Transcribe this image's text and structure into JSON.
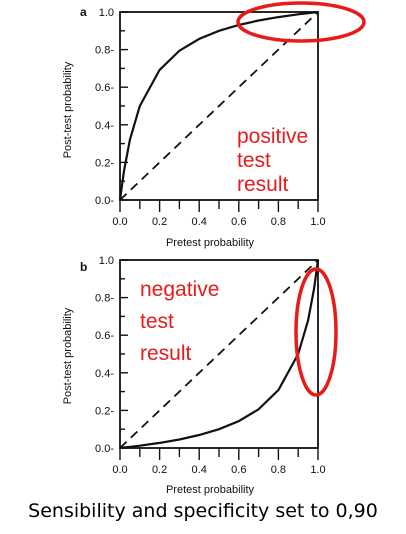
{
  "caption": "Sensibility and specificity set to 0,90",
  "colors": {
    "highlight": "#e81b1b",
    "ink": "#111111"
  },
  "chart_data": [
    {
      "type": "line",
      "panel_label": "a",
      "xlabel": "Pretest probability",
      "ylabel": "Post-test probability",
      "xlim": [
        0,
        1
      ],
      "ylim": [
        0,
        1
      ],
      "xticks": [
        "0.0",
        "0.2",
        "0.4",
        "0.6",
        "0.8",
        "1.0"
      ],
      "yticks": [
        "0.0-",
        "0.2-",
        "0.4-",
        "0.6-",
        "0.8-",
        "1.0"
      ],
      "annotation": [
        "positive",
        "test",
        "result"
      ],
      "series": [
        {
          "style": "solid",
          "x": [
            0,
            0.02,
            0.05,
            0.1,
            0.2,
            0.3,
            0.4,
            0.5,
            0.6,
            0.7,
            0.8,
            0.9,
            1.0
          ],
          "y": [
            0,
            0.155,
            0.321,
            0.5,
            0.692,
            0.794,
            0.857,
            0.9,
            0.931,
            0.955,
            0.973,
            0.988,
            1.0
          ]
        },
        {
          "style": "dashed",
          "x": [
            0,
            1
          ],
          "y": [
            0,
            1
          ]
        }
      ],
      "highlight": "ellipse around upper-right end of curve"
    },
    {
      "type": "line",
      "panel_label": "b",
      "xlabel": "Pretest probability",
      "ylabel": "Post-test probability",
      "xlim": [
        0,
        1
      ],
      "ylim": [
        0,
        1
      ],
      "xticks": [
        "0.0",
        "0.2",
        "0.4",
        "0.6",
        "0.8",
        "1.0"
      ],
      "yticks": [
        "0.0-",
        "0.2-",
        "0.4-",
        "0.6-",
        "0.8-",
        "1.0"
      ],
      "annotation": [
        "negative",
        "test",
        "result"
      ],
      "series": [
        {
          "style": "solid",
          "x": [
            0,
            0.1,
            0.2,
            0.3,
            0.4,
            0.5,
            0.6,
            0.7,
            0.8,
            0.9,
            0.95,
            0.98,
            1.0
          ],
          "y": [
            0,
            0.012,
            0.027,
            0.045,
            0.069,
            0.1,
            0.143,
            0.206,
            0.308,
            0.5,
            0.679,
            0.845,
            1.0
          ]
        },
        {
          "style": "dashed",
          "x": [
            0,
            1
          ],
          "y": [
            0,
            1
          ]
        }
      ],
      "highlight": "ellipse around steep upper-right part of curve"
    }
  ]
}
